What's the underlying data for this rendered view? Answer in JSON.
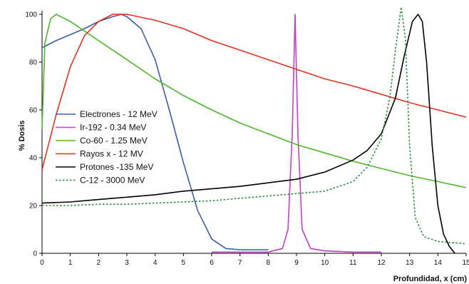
{
  "chart_data": {
    "type": "line",
    "xlabel": "Profundidad, x (cm)",
    "ylabel": "% Dosis",
    "xlim": [
      0,
      15
    ],
    "ylim": [
      0,
      100
    ],
    "xticks": [
      "0",
      "1",
      "2",
      "3",
      "4",
      "5",
      "6",
      "7",
      "8",
      "9",
      "10",
      "11",
      "12",
      "13",
      "14",
      "15"
    ],
    "yticks": [
      "0",
      "20",
      "40",
      "60",
      "80",
      "100"
    ],
    "grid": false,
    "legend_position": "left",
    "series": [
      {
        "name": "Electrones - 12 MeV",
        "color": "#3a5ea8",
        "dash": "solid",
        "points": [
          [
            0,
            86
          ],
          [
            0.5,
            89
          ],
          [
            1,
            91.5
          ],
          [
            1.5,
            94
          ],
          [
            2,
            97
          ],
          [
            2.5,
            99
          ],
          [
            2.8,
            100
          ],
          [
            3,
            99
          ],
          [
            3.5,
            94
          ],
          [
            4,
            81
          ],
          [
            4.5,
            60
          ],
          [
            5,
            38
          ],
          [
            5.5,
            18
          ],
          [
            6,
            6
          ],
          [
            6.5,
            2
          ],
          [
            7,
            1.5
          ],
          [
            8,
            1.5
          ]
        ]
      },
      {
        "name": "Ir-192  -  0.34 MeV",
        "color": "#c23fc2",
        "dash": "solid",
        "points": [
          [
            6,
            0.5
          ],
          [
            8,
            0.5
          ],
          [
            8.5,
            2
          ],
          [
            8.7,
            10
          ],
          [
            8.85,
            50
          ],
          [
            8.95,
            100
          ],
          [
            9.05,
            50
          ],
          [
            9.2,
            10
          ],
          [
            9.5,
            2
          ],
          [
            10,
            1
          ],
          [
            11,
            0.5
          ],
          [
            12,
            0.5
          ]
        ]
      },
      {
        "name": "Co-60 - 1.25 MeV",
        "color": "#4cb82a",
        "dash": "solid",
        "points": [
          [
            0,
            52
          ],
          [
            0.1,
            88
          ],
          [
            0.3,
            98
          ],
          [
            0.5,
            100
          ],
          [
            1,
            97
          ],
          [
            2,
            89
          ],
          [
            3,
            81
          ],
          [
            4,
            73
          ],
          [
            5,
            66
          ],
          [
            6,
            60
          ],
          [
            7,
            54.5
          ],
          [
            8,
            50
          ],
          [
            9,
            45.5
          ],
          [
            10,
            42
          ],
          [
            11,
            38.5
          ],
          [
            12,
            35.5
          ],
          [
            13,
            32.5
          ],
          [
            14,
            30
          ],
          [
            15,
            27.5
          ]
        ]
      },
      {
        "name": "Rayos x - 12 MV",
        "color": "#e0321e",
        "dash": "solid",
        "points": [
          [
            0,
            35
          ],
          [
            0.5,
            58
          ],
          [
            1,
            78
          ],
          [
            1.5,
            91
          ],
          [
            2,
            97
          ],
          [
            2.5,
            100
          ],
          [
            3,
            100
          ],
          [
            4,
            97.5
          ],
          [
            5,
            94
          ],
          [
            6,
            89
          ],
          [
            7,
            85
          ],
          [
            8,
            81
          ],
          [
            9,
            77
          ],
          [
            10,
            73
          ],
          [
            11,
            70
          ],
          [
            12,
            66.5
          ],
          [
            13,
            63
          ],
          [
            14,
            60
          ],
          [
            15,
            57
          ]
        ]
      },
      {
        "name": "Protones -135 MeV",
        "color": "#000000",
        "dash": "solid",
        "points": [
          [
            0,
            21
          ],
          [
            1,
            21.5
          ],
          [
            2,
            22.5
          ],
          [
            3,
            23.5
          ],
          [
            4,
            24.5
          ],
          [
            5,
            26
          ],
          [
            6,
            27
          ],
          [
            7,
            28
          ],
          [
            8,
            29.5
          ],
          [
            9,
            31
          ],
          [
            10,
            34
          ],
          [
            11,
            39
          ],
          [
            11.5,
            43
          ],
          [
            12,
            50
          ],
          [
            12.5,
            65
          ],
          [
            12.8,
            82
          ],
          [
            13.1,
            97
          ],
          [
            13.3,
            100
          ],
          [
            13.45,
            97
          ],
          [
            13.6,
            80
          ],
          [
            13.8,
            45
          ],
          [
            14,
            20
          ],
          [
            14.2,
            8
          ],
          [
            14.4,
            3
          ],
          [
            14.6,
            0
          ]
        ]
      },
      {
        "name": "C-12 - 3000 MeV",
        "color": "#2a8a38",
        "dash": "dotted",
        "points": [
          [
            0,
            20
          ],
          [
            1,
            20
          ],
          [
            2,
            20.5
          ],
          [
            3,
            20.5
          ],
          [
            4,
            21
          ],
          [
            5,
            21.5
          ],
          [
            6,
            22
          ],
          [
            7,
            23
          ],
          [
            8,
            24
          ],
          [
            9,
            25
          ],
          [
            10,
            26
          ],
          [
            11,
            30
          ],
          [
            11.5,
            36
          ],
          [
            12,
            48
          ],
          [
            12.3,
            65
          ],
          [
            12.5,
            85
          ],
          [
            12.7,
            103
          ],
          [
            12.85,
            90
          ],
          [
            13,
            45
          ],
          [
            13.2,
            15
          ],
          [
            13.5,
            7
          ],
          [
            14,
            5
          ],
          [
            15,
            4
          ]
        ]
      }
    ]
  }
}
